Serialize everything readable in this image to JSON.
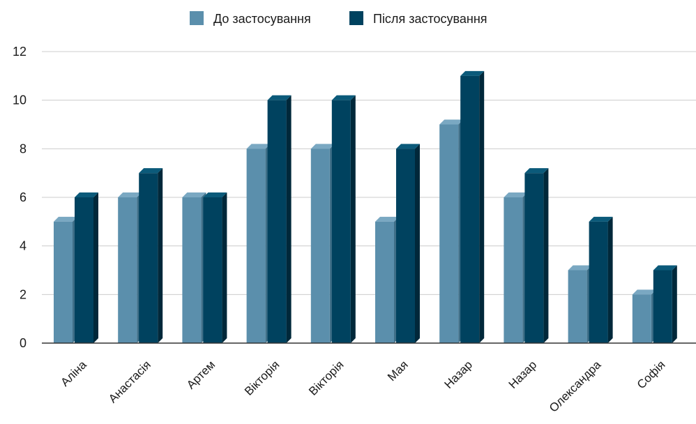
{
  "chart_data": {
    "type": "bar",
    "categories": [
      "Аліна",
      "Анастасія",
      "Артем",
      "Вікторія",
      "Вікторія",
      "Мая",
      "Назар",
      "Назар",
      "Олександра",
      "Софія"
    ],
    "series": [
      {
        "name": "До застосування",
        "values": [
          5,
          6,
          6,
          8,
          8,
          5,
          9,
          6,
          3,
          2
        ],
        "color": "#5b8fac"
      },
      {
        "name": "Після застосування",
        "values": [
          6,
          7,
          6,
          10,
          10,
          8,
          11,
          7,
          5,
          3
        ],
        "color": "#00425f"
      }
    ],
    "ylim": [
      0,
      12
    ],
    "yticks": [
      "0",
      "2",
      "4",
      "6",
      "8",
      "10",
      "12"
    ],
    "grid": true,
    "legend": "top-center",
    "style": "3d-column"
  }
}
